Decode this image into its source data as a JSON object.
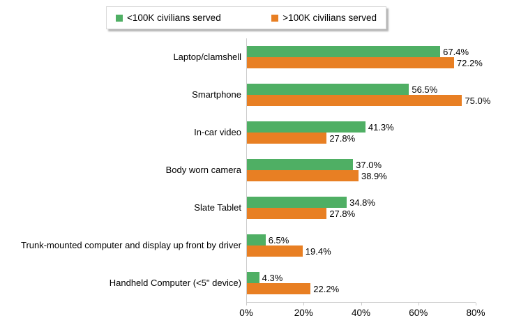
{
  "chart_data": {
    "type": "bar",
    "orientation": "horizontal",
    "title": "",
    "categories": [
      "Laptop/clamshell",
      "Smartphone",
      "In-car video",
      "Body worn camera",
      "Slate Tablet",
      "Trunk-mounted computer and display up front by driver",
      "Handheld Computer (<5\" device)"
    ],
    "series": [
      {
        "name": "<100K civilians served",
        "color": "#4FAF64",
        "values": [
          67.4,
          56.5,
          41.3,
          37.0,
          34.8,
          6.5,
          4.3
        ]
      },
      {
        "name": ">100K civilians served",
        "color": "#E87F23",
        "values": [
          72.2,
          75.0,
          27.8,
          38.9,
          27.8,
          19.4,
          22.2
        ]
      }
    ],
    "value_label_suffix": "%",
    "value_label_decimals": 1,
    "xaxis": {
      "min": 0,
      "max": 80,
      "ticks": [
        "0%",
        "20%",
        "40%",
        "60%",
        "80%"
      ]
    },
    "legend_position": "top",
    "grid": false,
    "axis_color": "#c9c9c9"
  }
}
